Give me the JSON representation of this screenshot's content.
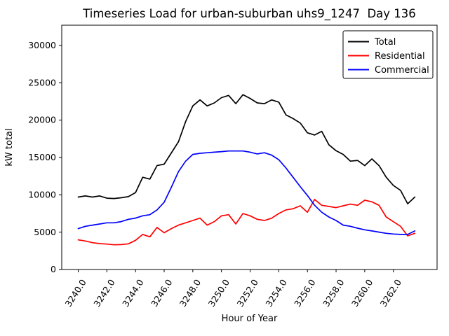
{
  "chart_data": {
    "type": "line",
    "title": "Timeseries Load for urban-suburban uhs9_1247  Day 136",
    "xlabel": "Hour of Year",
    "ylabel": "kW total",
    "xlim": [
      3238.85,
      3265.05
    ],
    "ylim": [
      0,
      32700
    ],
    "grid": false,
    "legend_position": "upper right",
    "x_tick_labels": [
      "3240.0",
      "3242.0",
      "3244.0",
      "3246.0",
      "3248.0",
      "3250.0",
      "3252.0",
      "3254.0",
      "3256.0",
      "3258.0",
      "3260.0",
      "3262.0"
    ],
    "x_tick_values": [
      3240,
      3242,
      3244,
      3246,
      3248,
      3250,
      3252,
      3254,
      3256,
      3258,
      3260,
      3262
    ],
    "x_tick_rotation": 57,
    "y_tick_labels": [
      "0",
      "5000",
      "10000",
      "15000",
      "20000",
      "25000",
      "30000"
    ],
    "y_tick_values": [
      0,
      5000,
      10000,
      15000,
      20000,
      25000,
      30000
    ],
    "x": [
      3240.0,
      3240.5,
      3241.0,
      3241.5,
      3242.0,
      3242.5,
      3243.0,
      3243.5,
      3244.0,
      3244.5,
      3245.0,
      3245.5,
      3246.0,
      3246.5,
      3247.0,
      3247.5,
      3248.0,
      3248.5,
      3249.0,
      3249.5,
      3250.0,
      3250.5,
      3251.0,
      3251.5,
      3252.0,
      3252.5,
      3253.0,
      3253.5,
      3254.0,
      3254.5,
      3255.0,
      3255.5,
      3256.0,
      3256.5,
      3257.0,
      3257.5,
      3258.0,
      3258.5,
      3259.0,
      3259.5,
      3260.0,
      3260.5,
      3261.0,
      3261.5,
      3262.0,
      3262.5,
      3263.0,
      3263.5
    ],
    "series": [
      {
        "name": "Total",
        "color": "#000000",
        "values": [
          9700,
          9850,
          9700,
          9850,
          9550,
          9500,
          9600,
          9750,
          10300,
          12350,
          12100,
          13900,
          14100,
          15600,
          17100,
          19800,
          21900,
          22700,
          21900,
          22300,
          23000,
          23300,
          22200,
          23400,
          22900,
          22300,
          22200,
          22700,
          22400,
          20700,
          20200,
          19600,
          18300,
          18000,
          18500,
          16700,
          15900,
          15400,
          14500,
          14600,
          13900,
          14800,
          13900,
          12350,
          11250,
          10600,
          8800,
          9700
        ]
      },
      {
        "name": "Residential",
        "color": "#ff0000",
        "values": [
          3970,
          3810,
          3590,
          3470,
          3400,
          3310,
          3340,
          3440,
          3910,
          4690,
          4380,
          5630,
          4920,
          5470,
          5940,
          6250,
          6560,
          6880,
          5940,
          6410,
          7190,
          7340,
          6090,
          7500,
          7190,
          6720,
          6560,
          6870,
          7500,
          7970,
          8130,
          8530,
          7660,
          9380,
          8590,
          8440,
          8280,
          8530,
          8750,
          8590,
          9280,
          9060,
          8590,
          7030,
          6400,
          5780,
          4500,
          4840
        ]
      },
      {
        "name": "Commercial",
        "color": "#0000ff",
        "values": [
          5470,
          5780,
          5940,
          6090,
          6250,
          6250,
          6410,
          6720,
          6880,
          7190,
          7340,
          7970,
          9000,
          11000,
          13100,
          14500,
          15400,
          15550,
          15630,
          15700,
          15780,
          15860,
          15860,
          15860,
          15700,
          15470,
          15630,
          15310,
          14690,
          13590,
          12340,
          11090,
          9900,
          8600,
          7660,
          7030,
          6560,
          5940,
          5780,
          5530,
          5310,
          5160,
          5000,
          4840,
          4750,
          4690,
          4690,
          5160
        ]
      }
    ]
  }
}
